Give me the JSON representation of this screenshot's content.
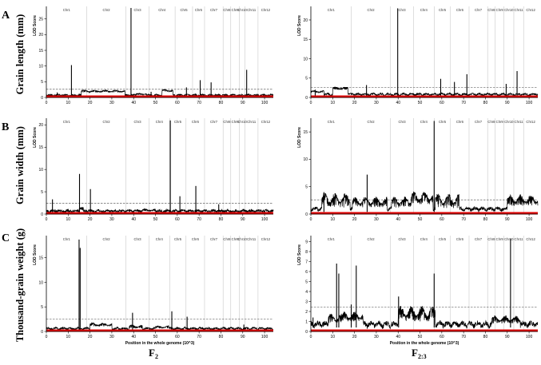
{
  "rows": [
    {
      "letter": "A",
      "trait": "Grain length (mm)"
    },
    {
      "letter": "B",
      "trait": "Grain width (mm)"
    },
    {
      "letter": "C",
      "trait": "Thousand-grain weight (g)"
    }
  ],
  "columns": [
    {
      "main": "F",
      "sub": "2"
    },
    {
      "main": "F",
      "sub": "2:3"
    }
  ],
  "colors": {
    "baseline": "#e00000",
    "curve": "#000000",
    "threshold": "#444444",
    "chromosome_divider": "#c8c8c8"
  },
  "chart_data": [
    {
      "id": "A-F2",
      "type": "line",
      "ylabel": "LOD Score",
      "xlabel": "",
      "xlim": [
        0,
        104
      ],
      "ylim": [
        0,
        29
      ],
      "yticks": [
        0,
        5,
        10,
        15,
        20,
        25
      ],
      "xticks": [
        0,
        10,
        20,
        30,
        40,
        50,
        60,
        70,
        80,
        90,
        100
      ],
      "threshold": 2.6,
      "chromosomes": [
        "Chr1",
        "Chr2",
        "Chr3",
        "Chr4",
        "Chr5",
        "Chr6",
        "Chr7",
        "Chr8",
        "Chr9",
        "Chr10",
        "Chr11",
        "Chr12"
      ],
      "chr_bounds": [
        0,
        18.5,
        36.5,
        47,
        59,
        67,
        72.5,
        81,
        84.5,
        88.5,
        91,
        97,
        104
      ],
      "noise_level": 0.6,
      "noise_amp": 0.5,
      "blocks": [
        [
          16,
          36,
          1.6,
          2.4
        ],
        [
          53,
          58,
          1.8,
          2.6
        ],
        [
          41,
          46,
          0.8,
          1.4
        ]
      ],
      "peaks": [
        [
          11.5,
          10.3
        ],
        [
          38.8,
          28.5
        ],
        [
          64.2,
          3.2
        ],
        [
          70.5,
          5.5
        ],
        [
          75.5,
          4.8
        ],
        [
          91.8,
          8.8
        ],
        [
          5,
          1.6
        ],
        [
          48,
          1.8
        ]
      ]
    },
    {
      "id": "A-F23",
      "type": "line",
      "ylabel": "LOD Score",
      "xlabel": "",
      "xlim": [
        0,
        104
      ],
      "ylim": [
        0,
        23.5
      ],
      "yticks": [
        0,
        5,
        10,
        15,
        20
      ],
      "xticks": [
        0,
        10,
        20,
        30,
        40,
        50,
        60,
        70,
        80,
        90,
        100
      ],
      "threshold": 2.6,
      "chromosomes": [
        "Chr1",
        "Chr2",
        "Chr3",
        "Chr4",
        "Chr5",
        "Chr6",
        "Chr7",
        "Chr8",
        "Chr9",
        "Chr10",
        "Chr11",
        "Chr12"
      ],
      "chr_bounds": [
        0,
        18.5,
        36.5,
        47,
        56.5,
        64,
        72.5,
        81,
        84.5,
        88.5,
        93,
        97.5,
        104
      ],
      "noise_level": 0.7,
      "noise_amp": 0.5,
      "blocks": [
        [
          10,
          17,
          2.0,
          2.8
        ],
        [
          0,
          6,
          1.2,
          1.8
        ]
      ],
      "peaks": [
        [
          39.8,
          23.0
        ],
        [
          59.5,
          4.8
        ],
        [
          65.8,
          4.0
        ],
        [
          71.5,
          6.0
        ],
        [
          89.5,
          3.5
        ],
        [
          94.5,
          6.8
        ],
        [
          25.5,
          3.2
        ],
        [
          2,
          2.0
        ]
      ]
    },
    {
      "id": "B-F2",
      "type": "line",
      "ylabel": "LOD Score",
      "xlabel": "",
      "xlim": [
        0,
        104
      ],
      "ylim": [
        0,
        21.5
      ],
      "yticks": [
        0,
        5,
        10,
        15,
        20
      ],
      "xticks": [
        0,
        10,
        20,
        30,
        40,
        50,
        60,
        70,
        80,
        90,
        100
      ],
      "threshold": 2.4,
      "chromosomes": [
        "Chr1",
        "Chr2",
        "Chr3",
        "Chr4",
        "Chr5",
        "Chr6",
        "Chr7",
        "Chr8",
        "Chr9",
        "Chr10",
        "Chr11",
        "Chr12"
      ],
      "chr_bounds": [
        0,
        18.5,
        36.5,
        47,
        56.5,
        64,
        72.5,
        81,
        84.5,
        88.5,
        91,
        97,
        104
      ],
      "noise_level": 0.5,
      "noise_amp": 0.6,
      "blocks": [
        [
          15,
          17,
          0.8,
          1.6
        ],
        [
          44,
          50,
          0.6,
          1.2
        ]
      ],
      "peaks": [
        [
          2.8,
          3.3
        ],
        [
          15.2,
          9.0
        ],
        [
          20.2,
          5.6
        ],
        [
          56.8,
          21.0
        ],
        [
          61.2,
          4.0
        ],
        [
          68.5,
          6.3
        ],
        [
          79,
          2.2
        ]
      ]
    },
    {
      "id": "B-F23",
      "type": "line",
      "ylabel": "LOD Score",
      "xlabel": "",
      "xlim": [
        0,
        104
      ],
      "ylim": [
        0,
        17.5
      ],
      "yticks": [
        0,
        5,
        10,
        15
      ],
      "xticks": [
        0,
        10,
        20,
        30,
        40,
        50,
        60,
        70,
        80,
        90,
        100
      ],
      "threshold": 2.6,
      "chromosomes": [
        "Chr1",
        "Chr2",
        "Chr3",
        "Chr4",
        "Chr5",
        "Chr6",
        "Chr7",
        "Chr8",
        "Chr9",
        "Chr10",
        "Chr11",
        "Chr12"
      ],
      "chr_bounds": [
        0,
        18.5,
        36.5,
        47,
        56.5,
        64,
        72.5,
        81,
        84.5,
        88.5,
        93,
        97.5,
        104
      ],
      "noise_level": 0.8,
      "noise_amp": 0.6,
      "blocks": [
        [
          5,
          18,
          1.2,
          4.0
        ],
        [
          19,
          35,
          1.2,
          3.2
        ],
        [
          37,
          46,
          1.2,
          3.2
        ],
        [
          46,
          56,
          1.8,
          4.2
        ],
        [
          57,
          68,
          1.0,
          3.8
        ],
        [
          90,
          104,
          1.5,
          3.6
        ]
      ],
      "peaks": [
        [
          25.8,
          7.2
        ],
        [
          56.5,
          17.0
        ],
        [
          6,
          4.0
        ]
      ]
    },
    {
      "id": "C-F2",
      "type": "line",
      "ylabel": "LOD Score",
      "xlabel": "Position in the whole genome (10^3)",
      "xlim": [
        0,
        104
      ],
      "ylim": [
        0,
        19.5
      ],
      "yticks": [
        0,
        5,
        10,
        15
      ],
      "xticks": [
        0,
        10,
        20,
        30,
        40,
        50,
        60,
        70,
        80,
        90,
        100
      ],
      "threshold": 2.5,
      "chromosomes": [
        "Chr1",
        "Chr2",
        "Chr3",
        "Chr4",
        "Chr5",
        "Chr6",
        "Chr7",
        "Chr8",
        "Chr9",
        "Chr10",
        "Chr11",
        "Chr12"
      ],
      "chr_bounds": [
        0,
        18.5,
        36.5,
        47,
        56.5,
        64,
        72.5,
        81,
        84.5,
        88.5,
        91,
        97,
        104
      ],
      "noise_level": 0.5,
      "noise_amp": 0.4,
      "blocks": [
        [
          20,
          30,
          1.0,
          1.8
        ],
        [
          38,
          44,
          0.6,
          1.4
        ],
        [
          50,
          56,
          0.6,
          1.2
        ]
      ],
      "peaks": [
        [
          15.0,
          18.7
        ],
        [
          15.5,
          17.0
        ],
        [
          39.5,
          3.8
        ],
        [
          57.5,
          4.1
        ],
        [
          64.5,
          3.0
        ],
        [
          90.5,
          1.4
        ]
      ]
    },
    {
      "id": "C-F23",
      "type": "line",
      "ylabel": "LOD Score",
      "xlabel": "Position in the whole genome (10^3)",
      "xlim": [
        0,
        104
      ],
      "ylim": [
        0,
        9.6
      ],
      "yticks": [
        0,
        1,
        2,
        3,
        4,
        5,
        6,
        7,
        8,
        9
      ],
      "xticks": [
        0,
        10,
        20,
        30,
        40,
        50,
        60,
        70,
        80,
        90,
        100
      ],
      "threshold": 2.45,
      "chromosomes": [
        "Chr1",
        "Chr2",
        "Chr3",
        "Chr4",
        "Chr5",
        "Chr6",
        "Chr7",
        "Chr8",
        "Chr9",
        "Chr10",
        "Chr11",
        "Chr12"
      ],
      "chr_bounds": [
        0,
        18.5,
        36.5,
        47,
        56.5,
        64,
        72.5,
        81,
        84.5,
        88.5,
        93,
        97.5,
        104
      ],
      "noise_level": 0.6,
      "noise_amp": 0.5,
      "blocks": [
        [
          8,
          14,
          0.8,
          1.8
        ],
        [
          14,
          24,
          1.0,
          2.0
        ],
        [
          40,
          57,
          1.0,
          2.6
        ],
        [
          83,
          96,
          0.8,
          1.6
        ]
      ],
      "peaks": [
        [
          11.8,
          6.8
        ],
        [
          12.8,
          5.8
        ],
        [
          18.5,
          2.7
        ],
        [
          20.8,
          6.6
        ],
        [
          40.2,
          3.5
        ],
        [
          56.5,
          5.8
        ],
        [
          91.5,
          9.3
        ],
        [
          1,
          1.4
        ]
      ]
    }
  ]
}
